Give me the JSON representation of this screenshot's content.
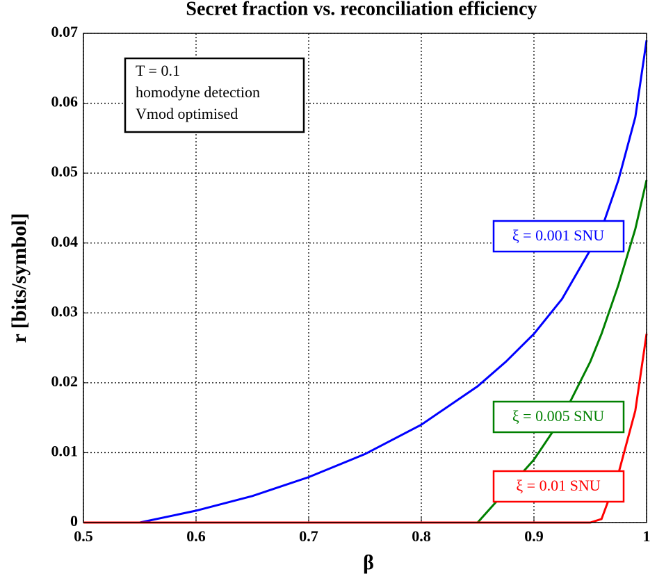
{
  "chart_data": {
    "type": "line",
    "title": "Secret fraction vs. reconciliation efficiency",
    "x_label": "β",
    "y_label": "r [bits/symbol]",
    "annotation": [
      "T = 0.1",
      "homodyne detection",
      "Vmod optimised"
    ],
    "x": [
      0.5,
      0.55,
      0.6,
      0.65,
      0.7,
      0.75,
      0.8,
      0.85,
      0.875,
      0.9,
      0.925,
      0.95,
      0.96,
      0.975,
      0.99,
      1.0
    ],
    "series": [
      {
        "name": "ξ = 0.001 SNU",
        "color": "#0000ff",
        "values": [
          0,
          0,
          0.0017,
          0.0038,
          0.0065,
          0.0098,
          0.014,
          0.0195,
          0.023,
          0.027,
          0.032,
          0.039,
          0.042,
          0.049,
          0.058,
          0.069
        ]
      },
      {
        "name": "ξ = 0.005 SNU",
        "color": "#008000",
        "values": [
          0,
          0,
          0,
          0,
          0,
          0,
          0,
          0,
          0.0045,
          0.009,
          0.015,
          0.023,
          0.027,
          0.034,
          0.042,
          0.049
        ]
      },
      {
        "name": "ξ = 0.01 SNU",
        "color": "#ff0000",
        "values": [
          0,
          0,
          0,
          0,
          0,
          0,
          0,
          0,
          0,
          0,
          0,
          0,
          0.0005,
          0.007,
          0.016,
          0.027
        ]
      }
    ],
    "xlim": [
      0.5,
      1
    ],
    "ylim": [
      0,
      0.07
    ],
    "xticks": [
      0.5,
      0.6,
      0.7,
      0.8,
      0.9,
      1
    ],
    "yticks": [
      0,
      0.01,
      0.02,
      0.03,
      0.04,
      0.05,
      0.06,
      0.07
    ],
    "grid": true
  }
}
